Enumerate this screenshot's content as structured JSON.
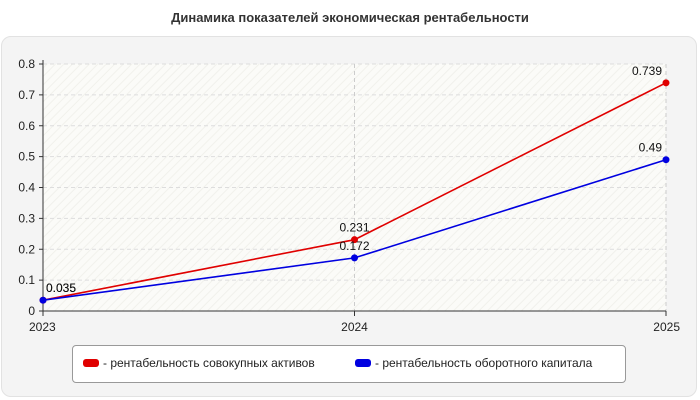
{
  "chart_data": {
    "type": "line",
    "title": "Динамика показателей экономическая рентабельности",
    "xlabel": "",
    "ylabel": "",
    "x": [
      "2023",
      "2024",
      "2025"
    ],
    "ylim": [
      0,
      0.8
    ],
    "yticks": [
      "0",
      "0.1",
      "0.2",
      "0.3",
      "0.4",
      "0.5",
      "0.6",
      "0.7",
      "0.8"
    ],
    "grid": true,
    "legend_position": "bottom",
    "series": [
      {
        "name": "- рентабельность совокупных активов",
        "color": "#e00000",
        "values": [
          0.035,
          0.231,
          0.739
        ],
        "labels": [
          "0.035",
          "0.231",
          "0.739"
        ]
      },
      {
        "name": "- рентабельность оборотного капитала",
        "color": "#0000e0",
        "values": [
          0.035,
          0.172,
          0.49
        ],
        "labels": [
          "0.035",
          "0.172",
          "0.49"
        ]
      }
    ]
  }
}
